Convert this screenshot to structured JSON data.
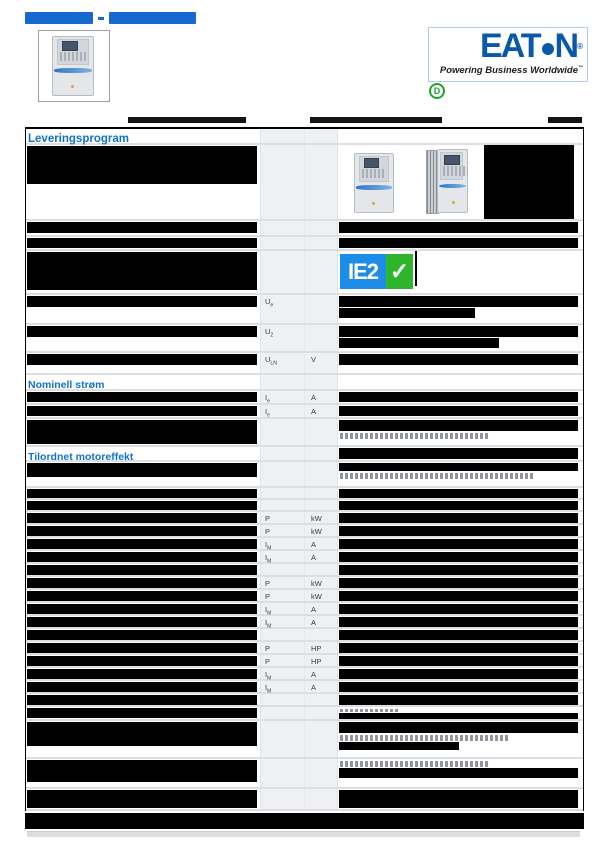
{
  "title": {
    "redacted": true,
    "segments": [
      68,
      87
    ],
    "note": "blue hyperlink part-number title, illegible at source resolution"
  },
  "eaton": {
    "word_left": "EAT",
    "word_right": "N",
    "registered": "®",
    "tagline": "Powering Business Worldwide",
    "trademark": "™"
  },
  "cert": {
    "letter": "D"
  },
  "badge": {
    "label": "IE2",
    "check": "✓"
  },
  "colors": {
    "accent_blue": "#1272c9",
    "link_blue": "#1569cf",
    "eaton_blue": "#0a59a9",
    "badge_blue": "#1e8de8",
    "badge_green": "#2eb52c",
    "bar_black": "#000000",
    "row_separator": "#dcdee1",
    "cell_gray": "#eef0f3"
  },
  "fineprint": {
    "redacted": true,
    "bars": [
      [
        128,
        117,
        118
      ],
      [
        310,
        117,
        132
      ],
      [
        548,
        117,
        34
      ]
    ]
  },
  "rows": [
    {
      "k": "heading",
      "label": "Leveringsprogram",
      "big": true,
      "h": 16
    },
    {
      "k": "images",
      "h": 76,
      "left": [
        [
          230,
          38
        ]
      ]
    },
    {
      "k": "row",
      "h": 16,
      "left": [
        [
          230,
          11
        ]
      ],
      "right": [
        [
          239,
          11
        ]
      ]
    },
    {
      "k": "row",
      "h": 14,
      "left": [
        [
          230,
          10
        ]
      ],
      "right": [
        [
          239,
          10
        ]
      ]
    },
    {
      "k": "badge",
      "h": 44,
      "left": [
        [
          230,
          38
        ]
      ]
    },
    {
      "k": "row",
      "h": 30,
      "sym": {
        "base": "U",
        "sub": "e"
      },
      "left": [
        [
          230,
          11
        ]
      ],
      "right": [
        [
          239,
          11
        ],
        [
          136,
          10
        ]
      ]
    },
    {
      "k": "row",
      "h": 28,
      "sym": {
        "base": "U",
        "sub": "2"
      },
      "left": [
        [
          230,
          11
        ]
      ],
      "right": [
        [
          239,
          11
        ],
        [
          160,
          10
        ]
      ]
    },
    {
      "k": "row",
      "h": 22,
      "sym": {
        "base": "U",
        "sub": "LN"
      },
      "unit": "V",
      "left": [
        [
          230,
          11
        ]
      ],
      "right": [
        [
          239,
          11
        ]
      ]
    },
    {
      "k": "heading",
      "label": "Nominell strøm",
      "h": 16
    },
    {
      "k": "row",
      "h": 14,
      "sym": {
        "base": "I",
        "sub": "e"
      },
      "unit": "A",
      "left": [
        [
          230,
          10
        ]
      ],
      "right": [
        [
          239,
          10
        ]
      ]
    },
    {
      "k": "row",
      "h": 14,
      "sym": {
        "base": "I",
        "sub": "e"
      },
      "unit": "A",
      "left": [
        [
          230,
          10
        ]
      ],
      "right": [
        [
          239,
          10
        ]
      ]
    },
    {
      "k": "row",
      "h": 28,
      "left": [
        [
          230,
          24
        ]
      ],
      "right": [
        [
          239,
          11
        ],
        [
          "dots",
          150
        ]
      ]
    },
    {
      "k": "heading",
      "label": "Tilordnet motoreffekt",
      "h": 15,
      "rightbar": true
    },
    {
      "k": "row",
      "h": 26,
      "left": [
        [
          230,
          14
        ]
      ],
      "right": [
        [
          239,
          8
        ],
        [
          "dots",
          195
        ]
      ]
    },
    {
      "k": "row",
      "h": 12,
      "left": [
        [
          230,
          9
        ]
      ],
      "right": [
        [
          239,
          9
        ]
      ]
    },
    {
      "k": "row",
      "h": 12,
      "left": [
        [
          230,
          9
        ]
      ],
      "right": [
        [
          239,
          9
        ]
      ]
    },
    {
      "k": "row",
      "h": 13,
      "sym": {
        "base": "P",
        "sub": ""
      },
      "unit": "kW",
      "left": [
        [
          230,
          10
        ]
      ],
      "right": [
        [
          239,
          10
        ]
      ]
    },
    {
      "k": "row",
      "h": 13,
      "sym": {
        "base": "P",
        "sub": ""
      },
      "unit": "kW",
      "left": [
        [
          230,
          10
        ]
      ],
      "right": [
        [
          239,
          10
        ]
      ]
    },
    {
      "k": "row",
      "h": 13,
      "sym": {
        "base": "I",
        "sub": "M"
      },
      "unit": "A",
      "left": [
        [
          230,
          10
        ]
      ],
      "right": [
        [
          239,
          10
        ]
      ]
    },
    {
      "k": "row",
      "h": 13,
      "sym": {
        "base": "I",
        "sub": "M"
      },
      "unit": "A",
      "left": [
        [
          230,
          10
        ]
      ],
      "right": [
        [
          239,
          10
        ]
      ]
    },
    {
      "k": "row",
      "h": 13,
      "left": [
        [
          230,
          10
        ]
      ],
      "right": [
        [
          239,
          10
        ]
      ]
    },
    {
      "k": "row",
      "h": 13,
      "sym": {
        "base": "P",
        "sub": ""
      },
      "unit": "kW",
      "left": [
        [
          230,
          10
        ]
      ],
      "right": [
        [
          239,
          10
        ]
      ]
    },
    {
      "k": "row",
      "h": 13,
      "sym": {
        "base": "P",
        "sub": ""
      },
      "unit": "kW",
      "left": [
        [
          230,
          10
        ]
      ],
      "right": [
        [
          239,
          10
        ]
      ]
    },
    {
      "k": "row",
      "h": 13,
      "sym": {
        "base": "I",
        "sub": "M"
      },
      "unit": "A",
      "left": [
        [
          230,
          10
        ]
      ],
      "right": [
        [
          239,
          10
        ]
      ]
    },
    {
      "k": "row",
      "h": 13,
      "sym": {
        "base": "I",
        "sub": "M"
      },
      "unit": "A",
      "left": [
        [
          230,
          10
        ]
      ],
      "right": [
        [
          239,
          10
        ]
      ]
    },
    {
      "k": "row",
      "h": 13,
      "left": [
        [
          230,
          10
        ]
      ],
      "right": [
        [
          239,
          10
        ]
      ]
    },
    {
      "k": "row",
      "h": 13,
      "sym": {
        "base": "P",
        "sub": ""
      },
      "unit": "HP",
      "left": [
        [
          230,
          10
        ]
      ],
      "right": [
        [
          239,
          10
        ]
      ]
    },
    {
      "k": "row",
      "h": 13,
      "sym": {
        "base": "P",
        "sub": ""
      },
      "unit": "HP",
      "left": [
        [
          230,
          10
        ]
      ],
      "right": [
        [
          239,
          10
        ]
      ]
    },
    {
      "k": "row",
      "h": 13,
      "sym": {
        "base": "I",
        "sub": "M"
      },
      "unit": "A",
      "left": [
        [
          230,
          10
        ]
      ],
      "right": [
        [
          239,
          10
        ]
      ]
    },
    {
      "k": "row",
      "h": 13,
      "sym": {
        "base": "I",
        "sub": "M"
      },
      "unit": "A",
      "left": [
        [
          230,
          10
        ]
      ],
      "right": [
        [
          239,
          10
        ]
      ]
    },
    {
      "k": "row",
      "h": 13,
      "left": [
        [
          230,
          10
        ]
      ],
      "right": [
        [
          239,
          10
        ]
      ]
    },
    {
      "k": "row",
      "h": 14,
      "left": [
        [
          230,
          10
        ]
      ],
      "right": [
        [
          "dots",
          60
        ],
        [
          239,
          10
        ]
      ]
    },
    {
      "k": "row",
      "h": 38,
      "left": [
        [
          230,
          24
        ]
      ],
      "right": [
        [
          239,
          11
        ],
        [
          "dots",
          170
        ],
        [
          120,
          8
        ]
      ]
    },
    {
      "k": "row",
      "h": 30,
      "left": [
        [
          230,
          22
        ]
      ],
      "right": [
        [
          "dots",
          150
        ],
        [
          239,
          10
        ]
      ]
    },
    {
      "k": "row",
      "h": 22,
      "left": [
        [
          230,
          18
        ]
      ],
      "right": [
        [
          239,
          18
        ]
      ]
    }
  ]
}
